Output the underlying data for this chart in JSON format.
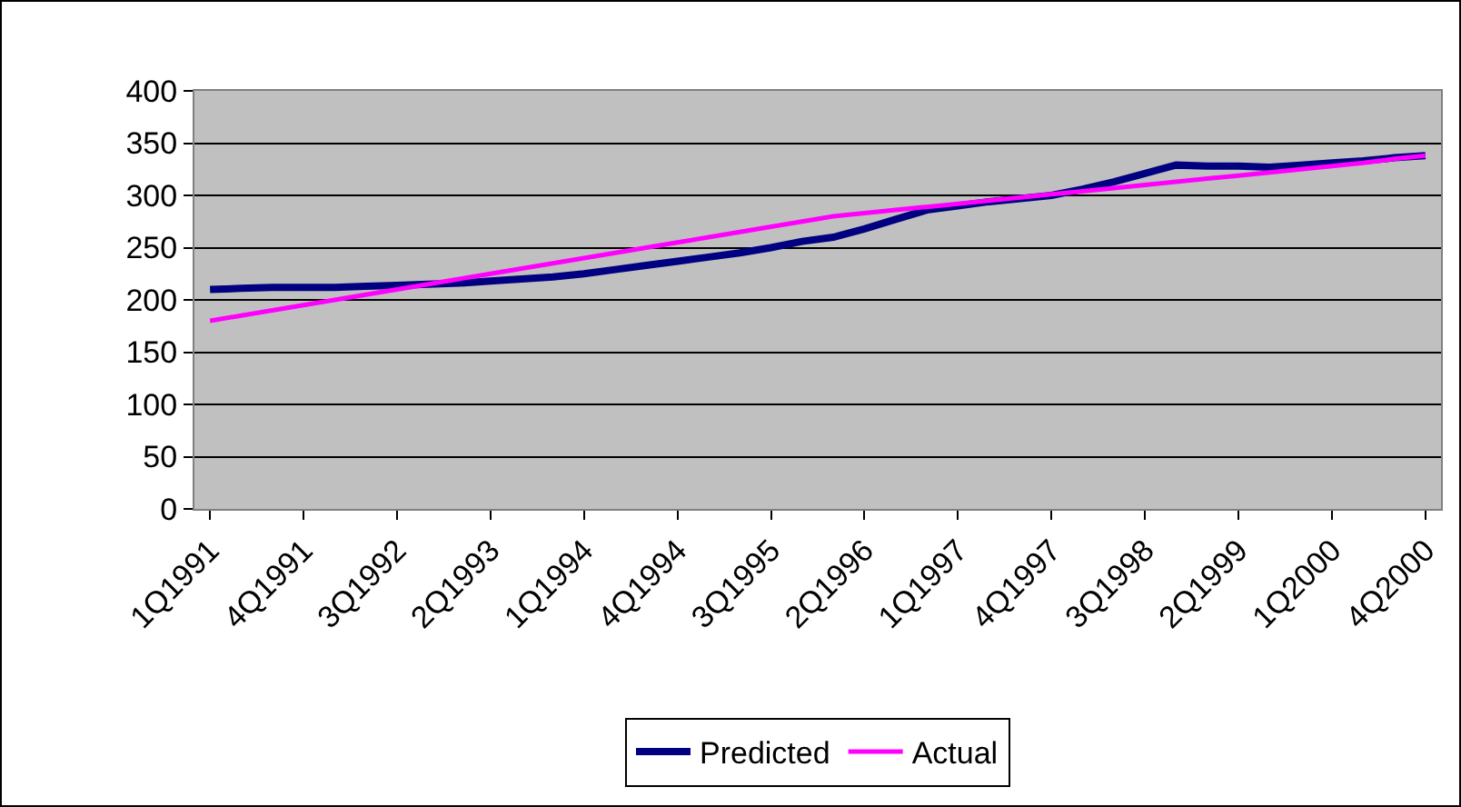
{
  "chart_data": {
    "type": "line",
    "categories": [
      "1Q1991",
      null,
      null,
      "4Q1991",
      null,
      null,
      "3Q1992",
      null,
      null,
      "2Q1993",
      null,
      null,
      "1Q1994",
      null,
      null,
      "4Q1994",
      null,
      null,
      "3Q1995",
      null,
      null,
      "2Q1996",
      null,
      null,
      "1Q1997",
      null,
      null,
      "4Q1997",
      null,
      null,
      "3Q1998",
      null,
      null,
      "2Q1999",
      null,
      null,
      "1Q2000",
      null,
      null,
      "4Q2000"
    ],
    "series": [
      {
        "name": "Predicted",
        "color": "#000080",
        "values": [
          210,
          211,
          212,
          212,
          212,
          213,
          214,
          215,
          216,
          218,
          220,
          222,
          225,
          229,
          233,
          237,
          241,
          245,
          250,
          256,
          260,
          268,
          277,
          286,
          290,
          294,
          297,
          300,
          306,
          313,
          321,
          329,
          328,
          328,
          327,
          329,
          331,
          333,
          336,
          338
        ]
      },
      {
        "name": "Actual",
        "color": "#ff00ff",
        "values": [
          180,
          185,
          190,
          195,
          200,
          205,
          210,
          215,
          220,
          225,
          230,
          235,
          240,
          245,
          250,
          255,
          260,
          265,
          270,
          275,
          280,
          283,
          286,
          289,
          292,
          295,
          298,
          301,
          304,
          307,
          310,
          313,
          316,
          319,
          322,
          325,
          328,
          331,
          335,
          338
        ]
      }
    ],
    "ylim": [
      0,
      400
    ],
    "yticks": [
      0,
      50,
      100,
      150,
      200,
      250,
      300,
      350,
      400
    ],
    "grid": "y",
    "legend": "bottom",
    "marker": "none",
    "line_style": "solid"
  }
}
